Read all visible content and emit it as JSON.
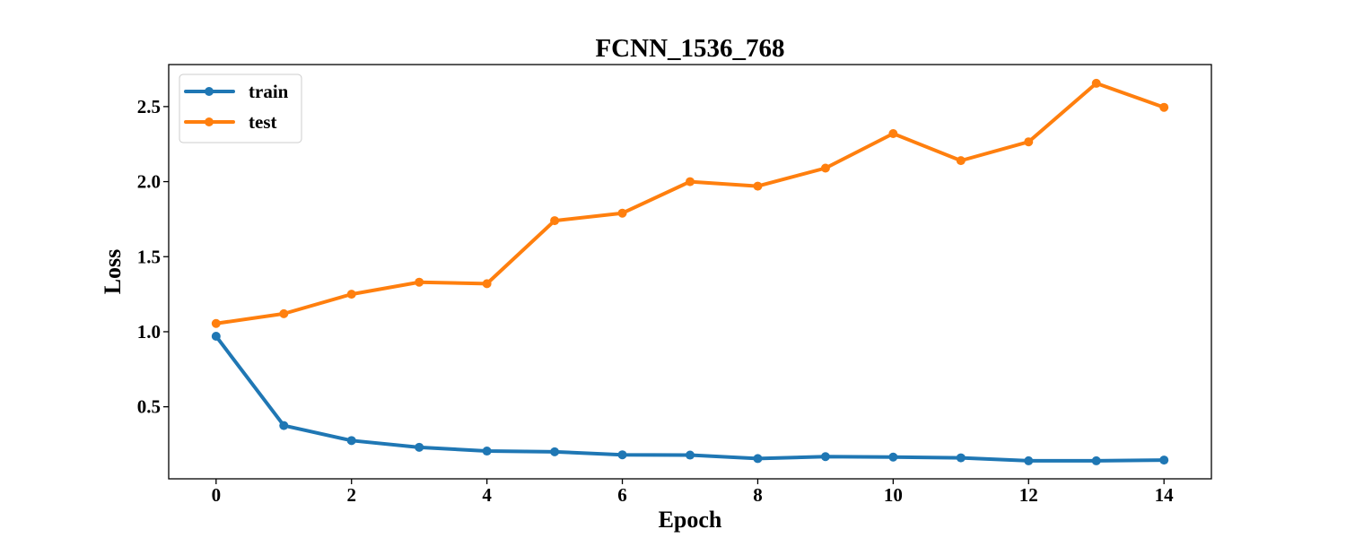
{
  "chart_data": {
    "type": "line",
    "title": "FCNN_1536_768",
    "xlabel": "Epoch",
    "ylabel": "Loss",
    "x": [
      0,
      1,
      2,
      3,
      4,
      5,
      6,
      7,
      8,
      9,
      10,
      11,
      12,
      13,
      14
    ],
    "xlim": [
      -0.7,
      14.7
    ],
    "ylim": [
      0.02,
      2.78
    ],
    "xticks": [
      0,
      2,
      4,
      6,
      8,
      10,
      12,
      14
    ],
    "xtick_labels": [
      "0",
      "2",
      "4",
      "6",
      "8",
      "10",
      "12",
      "14"
    ],
    "yticks": [
      0.5,
      1.0,
      1.5,
      2.0,
      2.5
    ],
    "ytick_labels": [
      "0.5",
      "1.0",
      "1.5",
      "2.0",
      "2.5"
    ],
    "grid": false,
    "legend_position": "top-left",
    "series": [
      {
        "name": "train",
        "color": "#1f77b4",
        "values": [
          0.97,
          0.375,
          0.275,
          0.23,
          0.205,
          0.2,
          0.18,
          0.178,
          0.155,
          0.168,
          0.165,
          0.16,
          0.14,
          0.14,
          0.145
        ]
      },
      {
        "name": "test",
        "color": "#ff7f0e",
        "values": [
          1.055,
          1.12,
          1.25,
          1.33,
          1.32,
          1.74,
          1.79,
          2.0,
          1.97,
          2.09,
          2.32,
          2.14,
          2.265,
          2.655,
          2.495
        ]
      }
    ]
  }
}
